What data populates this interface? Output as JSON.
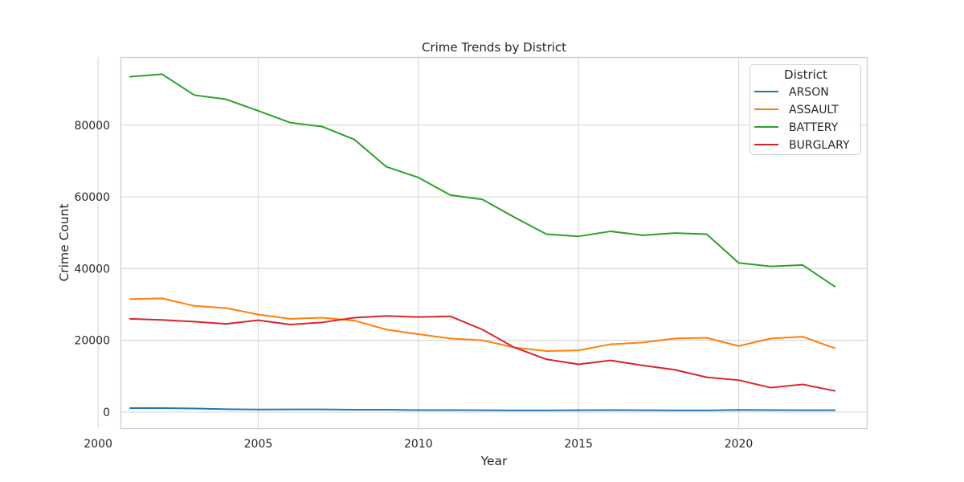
{
  "chart_data": {
    "type": "line",
    "title": "Crime Trends by District",
    "xlabel": "Year",
    "ylabel": "Crime Count",
    "xlim": [
      2000.7,
      2024.0
    ],
    "ylim": [
      -4500,
      99000
    ],
    "x_ticks": [
      2000,
      2005,
      2010,
      2015,
      2020
    ],
    "y_ticks": [
      0,
      20000,
      40000,
      60000,
      80000
    ],
    "grid": true,
    "legend_title": "District",
    "legend_position": "top-right",
    "x": [
      2001,
      2002,
      2003,
      2004,
      2005,
      2006,
      2007,
      2008,
      2009,
      2010,
      2011,
      2012,
      2013,
      2014,
      2015,
      2016,
      2017,
      2018,
      2019,
      2020,
      2021,
      2022,
      2023
    ],
    "series": [
      {
        "name": "ARSON",
        "color": "#1f77b4",
        "values": [
          1100,
          1100,
          1000,
          800,
          700,
          750,
          750,
          650,
          650,
          550,
          550,
          500,
          450,
          450,
          500,
          550,
          500,
          450,
          450,
          600,
          550,
          500,
          500
        ]
      },
      {
        "name": "ASSAULT",
        "color": "#ff7f0e",
        "values": [
          31500,
          31700,
          29600,
          29000,
          27200,
          26000,
          26300,
          25500,
          23000,
          21700,
          20500,
          20000,
          18000,
          17000,
          17200,
          18900,
          19400,
          20500,
          20700,
          18400,
          20500,
          21000,
          17800
        ]
      },
      {
        "name": "BATTERY",
        "color": "#2ca02c",
        "values": [
          93500,
          94200,
          88400,
          87200,
          84000,
          80700,
          79600,
          76000,
          68400,
          65400,
          60500,
          59300,
          54300,
          49600,
          49000,
          50400,
          49300,
          49900,
          49600,
          41600,
          40600,
          41000,
          35000
        ]
      },
      {
        "name": "BURGLARY",
        "color": "#d62728",
        "values": [
          26000,
          25700,
          25200,
          24600,
          25600,
          24400,
          25000,
          26300,
          26800,
          26500,
          26700,
          23000,
          18000,
          14700,
          13300,
          14400,
          13000,
          11800,
          9700,
          8900,
          6800,
          7700,
          5900
        ]
      }
    ]
  }
}
